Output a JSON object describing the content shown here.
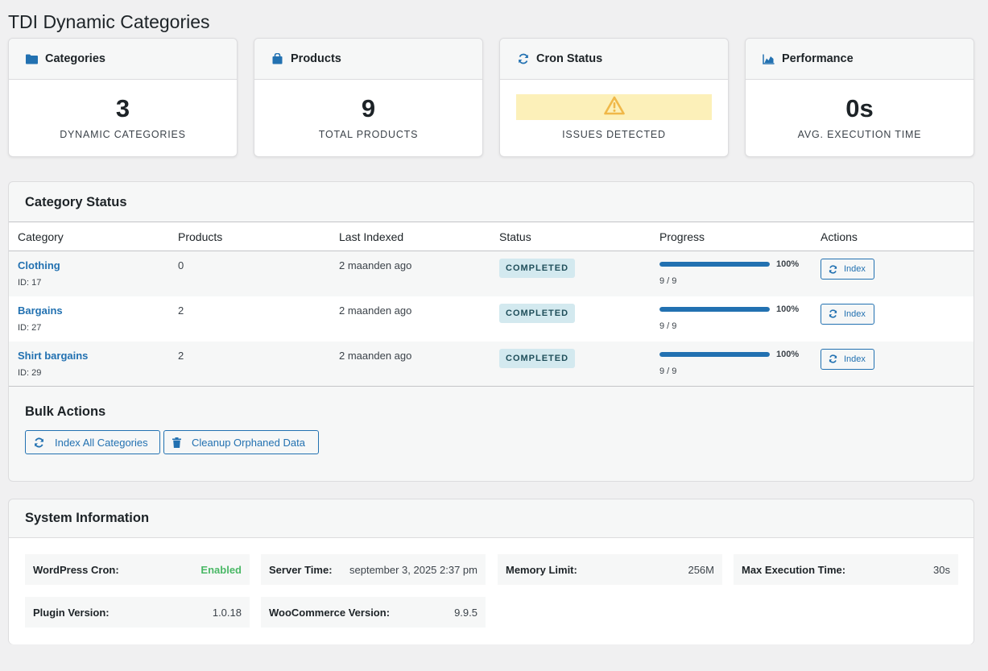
{
  "page": {
    "title": "TDI Dynamic Categories"
  },
  "colors": {
    "accent": "#2271b1",
    "warning": "#f0b849",
    "success": "#4ab866",
    "badge_bg": "#d3e9ef"
  },
  "cards": [
    {
      "icon": "folder-icon",
      "title": "Categories",
      "value": "3",
      "label": "DYNAMIC CATEGORIES"
    },
    {
      "icon": "shopping-bag-icon",
      "title": "Products",
      "value": "9",
      "label": "TOTAL PRODUCTS"
    },
    {
      "icon": "refresh-icon",
      "title": "Cron Status",
      "value_icon": "warning-icon",
      "label": "ISSUES DETECTED"
    },
    {
      "icon": "chart-area-icon",
      "title": "Performance",
      "value": "0s",
      "label": "AVG. EXECUTION TIME"
    }
  ],
  "category_status": {
    "title": "Category Status",
    "columns": [
      "Category",
      "Products",
      "Last Indexed",
      "Status",
      "Progress",
      "Actions"
    ],
    "rows": [
      {
        "name": "Clothing",
        "id": "ID: 17",
        "products": "0",
        "last_indexed": "2 maanden ago",
        "status": "COMPLETED",
        "progress_pct": 100,
        "progress_label": "100%",
        "progress_count": "9 / 9",
        "action": "Index"
      },
      {
        "name": "Bargains",
        "id": "ID: 27",
        "products": "2",
        "last_indexed": "2 maanden ago",
        "status": "COMPLETED",
        "progress_pct": 100,
        "progress_label": "100%",
        "progress_count": "9 / 9",
        "action": "Index"
      },
      {
        "name": "Shirt bargains",
        "id": "ID: 29",
        "products": "2",
        "last_indexed": "2 maanden ago",
        "status": "COMPLETED",
        "progress_pct": 100,
        "progress_label": "100%",
        "progress_count": "9 / 9",
        "action": "Index"
      }
    ]
  },
  "bulk_actions": {
    "title": "Bulk Actions",
    "index_all": "Index All Categories",
    "cleanup": "Cleanup Orphaned Data"
  },
  "system_info": {
    "title": "System Information",
    "items": [
      {
        "key": "WordPress Cron:",
        "value": "Enabled"
      },
      {
        "key": "Server Time:",
        "value": "september 3, 2025 2:37 pm"
      },
      {
        "key": "Memory Limit:",
        "value": "256M"
      },
      {
        "key": "Max Execution Time:",
        "value": "30s"
      },
      {
        "key": "Plugin Version:",
        "value": "1.0.18"
      },
      {
        "key": "WooCommerce Version:",
        "value": "9.9.5"
      }
    ]
  }
}
